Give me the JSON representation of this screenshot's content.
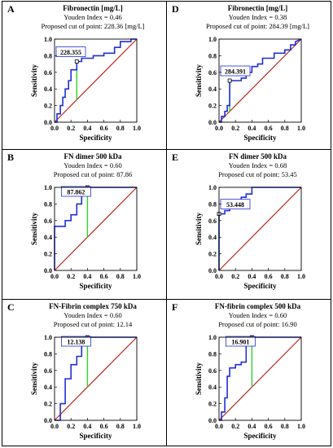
{
  "figure": {
    "colors": {
      "roc": "#1f2fd6",
      "reference": "#b8261c",
      "cutoff": "#2fd12f",
      "frame": "#000000"
    },
    "axis_tick_labels": [
      "0.0",
      "0.2",
      "0.4",
      "0.6",
      "0.8",
      "1.0"
    ]
  },
  "chart_data": [
    {
      "panel": "A",
      "type": "line",
      "title": "Fibronectin [mg/L]",
      "youden": "Youden Index = 0.46",
      "cutoff_text": "Proposed cut of point: 228.36 [mg/L]",
      "cutoff_label": "228.355",
      "xlabel": "Specificity",
      "ylabel": "Sensitivity",
      "xlim": [
        0,
        1
      ],
      "ylim": [
        0,
        1
      ],
      "cutoff_point": {
        "x": 0.27,
        "y": 0.73
      },
      "series": [
        {
          "role": "roc",
          "x": [
            0,
            0.03,
            0.03,
            0.07,
            0.07,
            0.1,
            0.1,
            0.13,
            0.13,
            0.17,
            0.17,
            0.2,
            0.2,
            0.27,
            0.27,
            0.33,
            0.33,
            0.47,
            0.47,
            0.6,
            0.6,
            0.73,
            0.73,
            0.8,
            0.8,
            0.93,
            0.93,
            1
          ],
          "y": [
            0,
            0,
            0.1,
            0.1,
            0.2,
            0.2,
            0.3,
            0.3,
            0.4,
            0.4,
            0.5,
            0.5,
            0.63,
            0.63,
            0.73,
            0.73,
            0.77,
            0.77,
            0.8,
            0.8,
            0.83,
            0.83,
            0.9,
            0.9,
            0.97,
            0.97,
            1,
            1
          ]
        },
        {
          "role": "reference",
          "x": [
            0,
            1
          ],
          "y": [
            0,
            1
          ]
        }
      ]
    },
    {
      "panel": "D",
      "type": "line",
      "title": "Fibronectin [mg/L]",
      "youden": "Youden Index = 0.38",
      "cutoff_text": "Proposed cut of point: 284.39 [mg/L]",
      "cutoff_label": "284.391",
      "xlabel": "Specificity",
      "ylabel": "Sensitivity",
      "xlim": [
        0,
        1
      ],
      "ylim": [
        0,
        1
      ],
      "cutoff_point": {
        "x": 0.13,
        "y": 0.5
      },
      "series": [
        {
          "role": "roc",
          "x": [
            0,
            0.03,
            0.03,
            0.07,
            0.07,
            0.1,
            0.1,
            0.13,
            0.13,
            0.27,
            0.27,
            0.33,
            0.33,
            0.4,
            0.4,
            0.47,
            0.47,
            0.53,
            0.53,
            0.67,
            0.67,
            0.8,
            0.8,
            0.87,
            0.87,
            0.93,
            0.93,
            1
          ],
          "y": [
            0,
            0,
            0.07,
            0.07,
            0.13,
            0.13,
            0.2,
            0.2,
            0.5,
            0.5,
            0.53,
            0.53,
            0.6,
            0.6,
            0.67,
            0.67,
            0.7,
            0.7,
            0.77,
            0.77,
            0.83,
            0.83,
            0.87,
            0.87,
            0.93,
            0.93,
            0.97,
            1
          ]
        },
        {
          "role": "reference",
          "x": [
            0,
            1
          ],
          "y": [
            0,
            1
          ]
        }
      ]
    },
    {
      "panel": "B",
      "type": "line",
      "title": "FN dimer 500 kDa",
      "youden": "Youden Index = 0.60",
      "cutoff_text": "Proposed cut of point: 87.86",
      "cutoff_label": "87.862",
      "xlabel": "Specificity",
      "ylabel": "Sensitivity",
      "xlim": [
        0,
        1
      ],
      "ylim": [
        0,
        1
      ],
      "cutoff_point": {
        "x": 0.4,
        "y": 1.0
      },
      "series": [
        {
          "role": "roc",
          "x": [
            0,
            0,
            0.13,
            0.13,
            0.2,
            0.2,
            0.27,
            0.27,
            0.33,
            0.33,
            0.4,
            0.4,
            1
          ],
          "y": [
            0,
            0.53,
            0.53,
            0.6,
            0.6,
            0.67,
            0.67,
            0.8,
            0.8,
            0.9,
            0.9,
            1,
            1
          ]
        },
        {
          "role": "reference",
          "x": [
            0,
            1
          ],
          "y": [
            0,
            1
          ]
        }
      ]
    },
    {
      "panel": "E",
      "type": "line",
      "title": "FN dimer 500 kDa",
      "youden": "Youden Index = 0.68",
      "cutoff_text": "Proposed cut of point: 53.45",
      "cutoff_label": "53.448",
      "xlabel": "Specificity",
      "ylabel": "Sensitivity",
      "xlim": [
        0,
        1
      ],
      "ylim": [
        0,
        1
      ],
      "cutoff_point": {
        "x": 0.0,
        "y": 0.68
      },
      "series": [
        {
          "role": "roc",
          "x": [
            0,
            0,
            0.07,
            0.07,
            0.13,
            0.13,
            0.2,
            0.2,
            0.27,
            0.27,
            0.33,
            0.33,
            0.4,
            0.4,
            1
          ],
          "y": [
            0,
            0.68,
            0.68,
            0.72,
            0.72,
            0.76,
            0.76,
            0.8,
            0.8,
            0.88,
            0.88,
            0.92,
            0.92,
            1,
            1
          ]
        },
        {
          "role": "reference",
          "x": [
            0,
            1
          ],
          "y": [
            0,
            1
          ]
        }
      ]
    },
    {
      "panel": "C",
      "type": "line",
      "title": "FN-Fibrin complex 750 kDa",
      "youden": "Youden Index = 0.60",
      "cutoff_text": "Proposed cut of point: 12.14",
      "cutoff_label": "12.138",
      "xlabel": "Specificity",
      "ylabel": "Sensitivity",
      "xlim": [
        0,
        1
      ],
      "ylim": [
        0,
        1
      ],
      "cutoff_point": {
        "x": 0.4,
        "y": 1.0
      },
      "series": [
        {
          "role": "roc",
          "x": [
            0,
            0.07,
            0.07,
            0.13,
            0.13,
            0.2,
            0.2,
            0.27,
            0.27,
            0.33,
            0.33,
            0.4,
            0.4,
            1
          ],
          "y": [
            0,
            0,
            0.2,
            0.2,
            0.5,
            0.5,
            0.67,
            0.67,
            0.77,
            0.77,
            0.9,
            0.9,
            1,
            1
          ]
        },
        {
          "role": "reference",
          "x": [
            0,
            1
          ],
          "y": [
            0,
            1
          ]
        }
      ]
    },
    {
      "panel": "F",
      "type": "line",
      "title": "FN-fibrin complex 500 kDa",
      "youden": "Youden Index = 0.60",
      "cutoff_text": "Proposed cut of point: 16.90",
      "cutoff_label": "16.901",
      "xlabel": "Specificity",
      "ylabel": "Sensitivity",
      "xlim": [
        0,
        1
      ],
      "ylim": [
        0,
        1
      ],
      "cutoff_point": {
        "x": 0.4,
        "y": 1.0
      },
      "series": [
        {
          "role": "roc",
          "x": [
            0,
            0.03,
            0.03,
            0.07,
            0.07,
            0.1,
            0.1,
            0.13,
            0.13,
            0.2,
            0.2,
            0.27,
            0.27,
            0.33,
            0.33,
            0.4,
            0.4,
            1
          ],
          "y": [
            0,
            0,
            0.1,
            0.1,
            0.27,
            0.27,
            0.53,
            0.53,
            0.63,
            0.63,
            0.67,
            0.67,
            0.7,
            0.7,
            0.93,
            0.93,
            1,
            1
          ]
        },
        {
          "role": "reference",
          "x": [
            0,
            1
          ],
          "y": [
            0,
            1
          ]
        }
      ]
    }
  ]
}
